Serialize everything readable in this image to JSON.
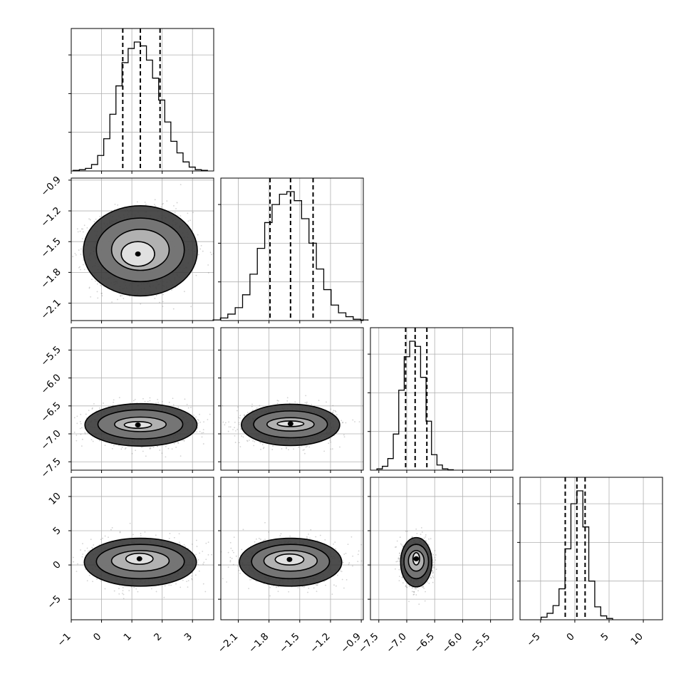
{
  "chart_data": {
    "type": "corner",
    "parameters": [
      {
        "range": [
          -1.0,
          3.7
        ],
        "ticks": [
          -1,
          0,
          1,
          2,
          3
        ],
        "tick_labels": [
          "−1",
          "0",
          "1",
          "2",
          "3"
        ],
        "quantiles": [
          0.7,
          1.28,
          1.93
        ],
        "hist": [
          0.005,
          0.01,
          0.02,
          0.05,
          0.12,
          0.25,
          0.44,
          0.66,
          0.84,
          0.95,
          1.0,
          0.97,
          0.86,
          0.72,
          0.55,
          0.38,
          0.23,
          0.14,
          0.07,
          0.03,
          0.01,
          0.005
        ]
      },
      {
        "range": [
          -2.27,
          -0.88
        ],
        "ticks": [
          -2.1,
          -1.8,
          -1.5,
          -1.2,
          -0.9
        ],
        "tick_labels": [
          "−2.1",
          "−1.8",
          "−1.5",
          "−1.2",
          "−0.9"
        ],
        "quantiles": [
          -1.79,
          -1.59,
          -1.37
        ],
        "hist": [
          0.005,
          0.02,
          0.05,
          0.1,
          0.2,
          0.36,
          0.56,
          0.76,
          0.9,
          0.98,
          1.0,
          0.93,
          0.79,
          0.6,
          0.4,
          0.24,
          0.12,
          0.06,
          0.03,
          0.01,
          0.005
        ]
      },
      {
        "range": [
          -7.65,
          -5.1
        ],
        "ticks": [
          -7.5,
          -7.0,
          -6.5,
          -6.0,
          -5.5
        ],
        "tick_labels": [
          "−7.5",
          "−7.0",
          "−6.5",
          "−6.0",
          "−5.5"
        ],
        "quantiles": [
          -7.02,
          -6.85,
          -6.64
        ],
        "hist": [
          0.01,
          0.03,
          0.09,
          0.28,
          0.62,
          0.88,
          1.0,
          0.96,
          0.72,
          0.38,
          0.12,
          0.04,
          0.01,
          0.003
        ]
      },
      {
        "range": [
          -8.0,
          12.8
        ],
        "ticks": [
          -5,
          0,
          5,
          10
        ],
        "tick_labels": [
          "−5",
          "0",
          "5",
          "10"
        ],
        "quantiles": [
          -1.4,
          0.3,
          1.5
        ],
        "hist": [
          0.02,
          0.05,
          0.11,
          0.24,
          0.55,
          0.9,
          1.0,
          0.72,
          0.3,
          0.1,
          0.03,
          0.01
        ]
      }
    ],
    "hist_max": 1.0,
    "hist_ticks": [
      0.3,
      0.6,
      0.9
    ],
    "joint_contours": {
      "1-0": [
        [
          1.2,
          -1.62,
          0.55,
          0.12
        ],
        [
          1.28,
          -1.58,
          0.95,
          0.2
        ],
        [
          1.28,
          -1.58,
          1.45,
          0.31
        ],
        [
          1.28,
          -1.59,
          1.88,
          0.44
        ]
      ],
      "2-0": [
        [
          1.2,
          -6.84,
          0.45,
          0.06
        ],
        [
          1.28,
          -6.83,
          0.85,
          0.13
        ],
        [
          1.28,
          -6.83,
          1.4,
          0.26
        ],
        [
          1.3,
          -6.84,
          1.85,
          0.38
        ]
      ],
      "2-1": [
        [
          -1.59,
          -6.82,
          0.13,
          0.05
        ],
        [
          -1.59,
          -6.83,
          0.23,
          0.12
        ],
        [
          -1.59,
          -6.83,
          0.36,
          0.24
        ],
        [
          -1.59,
          -6.84,
          0.48,
          0.37
        ]
      ],
      "3-0": [
        [
          1.25,
          0.9,
          0.45,
          0.8
        ],
        [
          1.28,
          0.6,
          0.95,
          1.5
        ],
        [
          1.28,
          0.5,
          1.45,
          2.5
        ],
        [
          1.28,
          0.4,
          1.85,
          3.5
        ]
      ],
      "3-1": [
        [
          -1.6,
          0.8,
          0.14,
          0.8
        ],
        [
          -1.59,
          0.6,
          0.26,
          1.5
        ],
        [
          -1.59,
          0.5,
          0.38,
          2.5
        ],
        [
          -1.59,
          0.4,
          0.5,
          3.5
        ]
      ],
      "3-2": [
        [
          -6.83,
          0.9,
          0.06,
          0.9
        ],
        [
          -6.83,
          0.6,
          0.14,
          1.5
        ],
        [
          -6.83,
          0.5,
          0.22,
          2.5
        ],
        [
          -6.83,
          0.4,
          0.28,
          3.6
        ]
      ]
    },
    "grid": true,
    "grid_color": "#b0b0b0",
    "scatter_color": "#7f7f7f",
    "density_color": "#000000"
  }
}
